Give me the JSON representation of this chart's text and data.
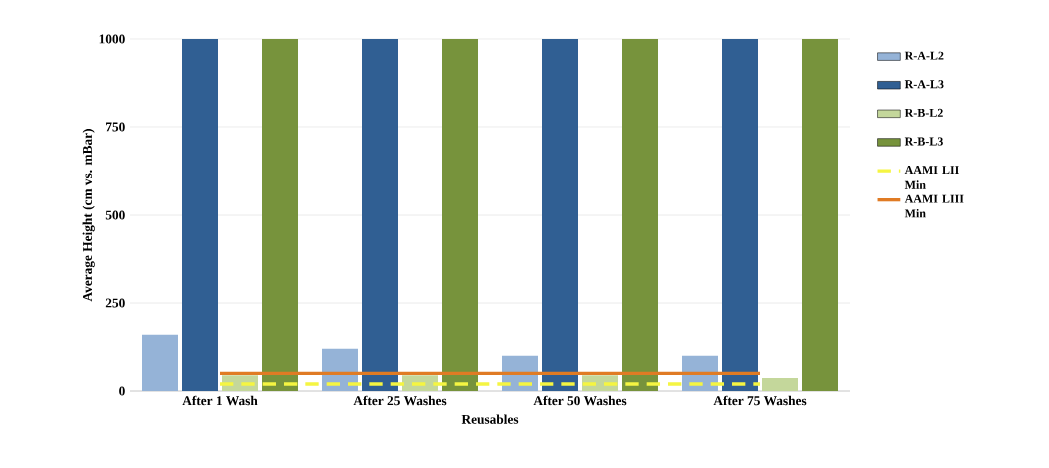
{
  "chart_data": {
    "type": "bar",
    "xlabel": "Reusables",
    "ylabel": "Average Height (cm vs. mBar)",
    "categories": [
      "After 1 Wash",
      "After 25 Washes",
      "After 50 Washes",
      "After 75 Washes"
    ],
    "series": [
      {
        "name": "R-A-L2",
        "color": "#95b3d7",
        "values": [
          160,
          120,
          100,
          100
        ]
      },
      {
        "name": "R-A-L3",
        "color": "#305f93",
        "values": [
          1000,
          1000,
          1000,
          1000
        ]
      },
      {
        "name": "R-B-L2",
        "color": "#c4d79b",
        "values": [
          45,
          45,
          45,
          37
        ]
      },
      {
        "name": "R-B-L3",
        "color": "#77933c",
        "values": [
          1000,
          1000,
          1000,
          1000
        ]
      },
      {
        "name": "AAMI LII Min",
        "type": "line",
        "color": "#f5f542",
        "line_style": "dashed",
        "values": [
          20,
          20,
          20,
          20
        ]
      },
      {
        "name": "AAMI LIII Min",
        "type": "line",
        "color": "#e07b24",
        "line_style": "solid",
        "values": [
          50,
          50,
          50,
          50
        ]
      }
    ],
    "ylim": [
      0,
      1000
    ],
    "yticks": [
      0,
      250,
      500,
      750,
      1000
    ],
    "grid": "y",
    "legend": "right",
    "marker": "none"
  }
}
